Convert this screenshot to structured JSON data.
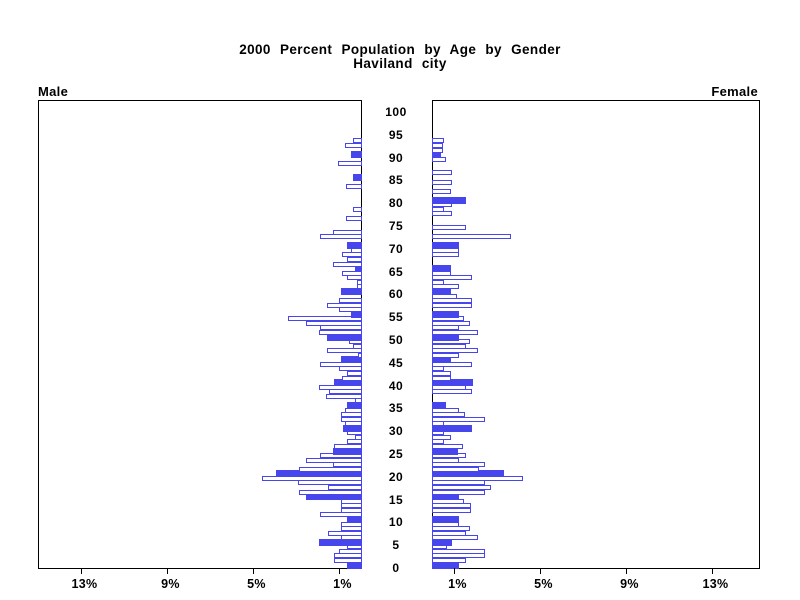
{
  "title": {
    "line1": "2000 Percent Population by Age by Gender",
    "line2": "Haviland city"
  },
  "headers": {
    "left": "Male",
    "right": "Female"
  },
  "colors": {
    "bar_blue": "#4646EC",
    "axis_black": "#000000",
    "bar_fill_white": "#FFFFFF"
  },
  "chart_data": {
    "type": "bar",
    "subtype": "population-pyramid",
    "title": "2000 Percent Population by Age by Gender",
    "subtitle": "Haviland city",
    "x_unit": "percent of population",
    "xlim": [
      0,
      15
    ],
    "x_ticks": {
      "values": [
        13,
        9,
        5,
        1
      ],
      "labels": [
        "13%",
        "9%",
        "5%",
        "1%"
      ]
    },
    "age_axis": {
      "min": 0,
      "max": 100,
      "label_step": 5,
      "tick_labels": [
        "0",
        "5",
        "10",
        "15",
        "20",
        "25",
        "30",
        "35",
        "40",
        "45",
        "50",
        "55",
        "60",
        "65",
        "70",
        "75",
        "80",
        "85",
        "90",
        "95",
        "100"
      ]
    },
    "solid_bar_rule": "ages that are multiples of 5 are drawn as solid filled bars; all other ages are white bars with blue outline",
    "grid": false,
    "legend": "none",
    "series": [
      {
        "name": "Male",
        "side": "left",
        "ages": "0-100 by 1",
        "values": [
          0.7,
          1.3,
          1.3,
          1.05,
          0.7,
          2.0,
          1.0,
          1.6,
          1.0,
          1.0,
          0.7,
          1.95,
          1.0,
          1.0,
          1.0,
          2.6,
          2.95,
          1.6,
          3.0,
          4.65,
          4.0,
          2.95,
          1.35,
          2.6,
          1.95,
          1.35,
          1.3,
          0.7,
          0.35,
          0.7,
          0.9,
          0.8,
          1.0,
          1.0,
          0.8,
          0.7,
          0.35,
          1.7,
          1.55,
          2.0,
          1.3,
          0.95,
          0.7,
          1.05,
          1.95,
          1.0,
          0.2,
          1.65,
          0.4,
          0.6,
          1.65,
          2.0,
          1.95,
          2.6,
          3.45,
          0.5,
          1.05,
          1.65,
          1.05,
          0.0,
          1.0,
          0.25,
          0.25,
          0.7,
          0.95,
          0.35,
          1.35,
          0.7,
          0.95,
          0.5,
          0.7,
          0.0,
          1.95,
          1.35,
          0.0,
          0.0,
          0.75,
          0.0,
          0.4,
          0.0,
          0.0,
          0.0,
          0.0,
          0.75,
          0.0,
          0.4,
          0.0,
          0.0,
          1.1,
          0.0,
          0.5,
          0.0,
          0.8,
          0.4,
          0.0,
          0.0,
          0.0,
          0.0,
          0.0,
          0.0,
          0.0
        ]
      },
      {
        "name": "Female",
        "side": "right",
        "ages": "0-100 by 1",
        "values": [
          1.25,
          1.6,
          2.45,
          2.45,
          0.7,
          0.95,
          2.15,
          1.6,
          1.75,
          1.25,
          1.25,
          0.0,
          1.8,
          1.8,
          1.5,
          1.25,
          2.45,
          2.75,
          2.45,
          4.25,
          3.35,
          2.2,
          2.45,
          1.25,
          1.6,
          1.2,
          1.45,
          0.55,
          0.9,
          0.55,
          1.85,
          0.55,
          2.45,
          1.55,
          1.25,
          0.65,
          0.0,
          0.0,
          1.85,
          1.6,
          1.9,
          0.9,
          0.9,
          0.55,
          1.85,
          0.9,
          1.25,
          2.15,
          1.6,
          1.75,
          1.25,
          2.15,
          1.25,
          1.75,
          1.5,
          1.25,
          0.0,
          1.85,
          1.85,
          1.15,
          0.9,
          1.25,
          0.55,
          1.85,
          0.9,
          0.9,
          0.0,
          0.0,
          1.25,
          1.25,
          1.25,
          0.0,
          3.65,
          0.0,
          1.6,
          0.0,
          0.0,
          0.95,
          0.55,
          0.95,
          1.6,
          0.0,
          0.9,
          0.0,
          0.95,
          0.0,
          0.95,
          0.0,
          0.0,
          0.65,
          0.4,
          0.5,
          0.5,
          0.55,
          0.0,
          0.0,
          0.0,
          0.0,
          0.0,
          0.0,
          0.0
        ]
      }
    ]
  }
}
